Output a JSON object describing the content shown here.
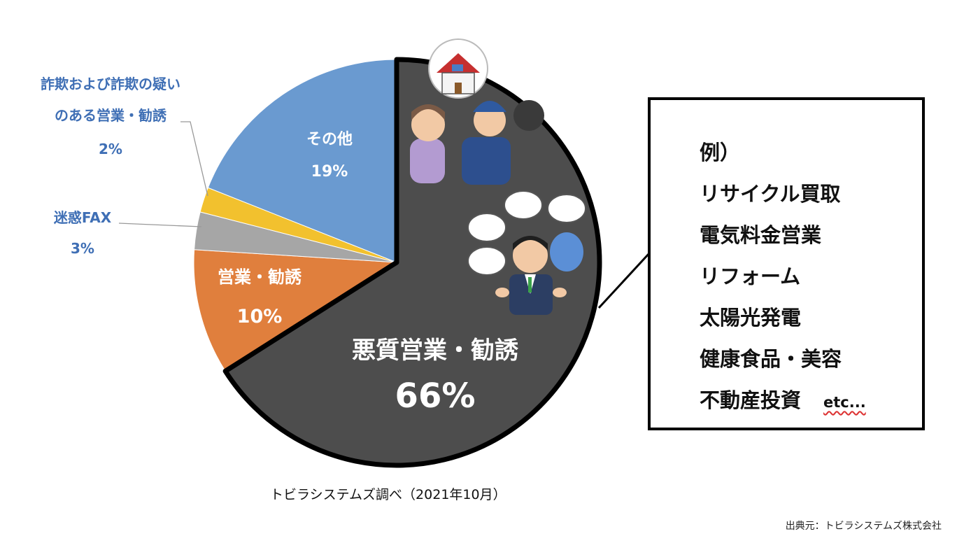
{
  "chart_data": {
    "type": "pie",
    "title": "",
    "slices": [
      {
        "label": "悪質営業・勧誘",
        "value_label": "66%",
        "value": 66,
        "color": "#4d4d4d"
      },
      {
        "label": "営業・勧誘",
        "value_label": "10%",
        "value": 10,
        "color": "#e07f3d"
      },
      {
        "label": "迷惑FAX",
        "value_label": "3%",
        "value": 3,
        "color": "#a6a6a6"
      },
      {
        "label": "詐欺および詐欺の疑い\nのある営業・勧誘",
        "label_line1": "詐欺および詐欺の疑い",
        "label_line2": "のある営業・勧誘",
        "value_label": "2%",
        "value": 2,
        "color": "#f2c12e"
      },
      {
        "label": "その他",
        "value_label": "19%",
        "value": 19,
        "color": "#6a9ad0"
      }
    ],
    "highlight_slice": "悪質営業・勧誘",
    "legend": "none"
  },
  "example_box": {
    "items": [
      "例）",
      "リサイクル買取",
      "電気料金営業",
      "リフォーム",
      "太陽光発電",
      "健康食品・美容",
      "不動産投資"
    ],
    "etc": "etc..."
  },
  "caption": "トビラシステムズ調べ（2021年10月）",
  "source": "出典元：トビラシステムズ株式会社"
}
